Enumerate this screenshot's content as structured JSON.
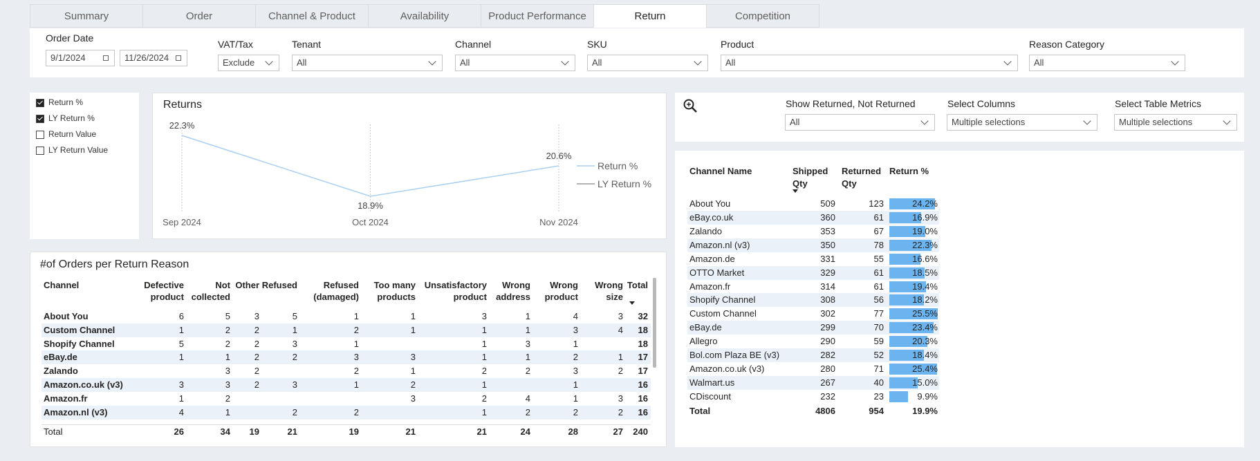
{
  "tabs": [
    "Summary",
    "Order",
    "Channel & Product",
    "Availability",
    "Product Performance",
    "Return",
    "Competition"
  ],
  "active_tab": 5,
  "date_filter": {
    "label": "Order Date",
    "start": "9/1/2024",
    "end": "11/26/2024"
  },
  "dropdowns": [
    {
      "label": "VAT/Tax",
      "value": "Exclude"
    },
    {
      "label": "Tenant",
      "value": "All"
    },
    {
      "label": "Channel",
      "value": "All"
    },
    {
      "label": "SKU",
      "value": "All"
    },
    {
      "label": "Product",
      "value": "All"
    },
    {
      "label": "Reason Category",
      "value": "All"
    }
  ],
  "metric_toggles": [
    {
      "label": "Return %",
      "checked": true
    },
    {
      "label": "LY Return %",
      "checked": true
    },
    {
      "label": "Return Value",
      "checked": false
    },
    {
      "label": "LY Return Value",
      "checked": false
    }
  ],
  "chart_data": {
    "type": "line",
    "title": "Returns",
    "categories": [
      "Sep 2024",
      "Oct 2024",
      "Nov 2024"
    ],
    "series": [
      {
        "name": "Return %",
        "color": "#a9cff2",
        "values": [
          22.3,
          18.9,
          20.6
        ],
        "value_labels": [
          "22.3%",
          "18.9%",
          "20.6%"
        ]
      },
      {
        "name": "LY Return %",
        "color": "#9a9a9a",
        "values": [
          null,
          null,
          null
        ]
      }
    ]
  },
  "reason_table": {
    "title": "#of Orders per Return Reason",
    "headers": [
      [
        "Channel"
      ],
      [
        "Defective",
        "product"
      ],
      [
        "Not",
        "collected"
      ],
      [
        "Other"
      ],
      [
        "Refused"
      ],
      [
        "Refused",
        "(damaged)"
      ],
      [
        "Too many",
        "products"
      ],
      [
        "Unsatisfactory",
        "product"
      ],
      [
        "Wrong",
        "address"
      ],
      [
        "Wrong",
        "product"
      ],
      [
        "Wrong",
        "size"
      ],
      [
        "Total"
      ]
    ],
    "rows": [
      [
        "About You",
        6,
        5,
        3,
        5,
        1,
        1,
        3,
        1,
        4,
        3,
        32
      ],
      [
        "Custom Channel",
        1,
        2,
        2,
        1,
        2,
        1,
        1,
        1,
        3,
        4,
        18
      ],
      [
        "Shopify Channel",
        5,
        2,
        2,
        3,
        1,
        null,
        1,
        3,
        1,
        null,
        18
      ],
      [
        "eBay.de",
        1,
        1,
        2,
        2,
        3,
        3,
        1,
        1,
        2,
        1,
        17
      ],
      [
        "Zalando",
        null,
        3,
        2,
        null,
        2,
        1,
        2,
        2,
        3,
        2,
        17
      ],
      [
        "Amazon.co.uk (v3)",
        3,
        3,
        2,
        3,
        1,
        2,
        1,
        null,
        1,
        null,
        16
      ],
      [
        "Amazon.fr",
        1,
        2,
        null,
        null,
        null,
        3,
        2,
        4,
        1,
        3,
        16
      ],
      [
        "Amazon.nl (v3)",
        4,
        1,
        null,
        2,
        2,
        null,
        1,
        2,
        2,
        2,
        16
      ]
    ],
    "total": [
      "Total",
      26,
      34,
      19,
      21,
      19,
      21,
      21,
      24,
      28,
      27,
      240
    ]
  },
  "table_slicers": [
    {
      "label": "Show Returned, Not Returned",
      "value": "All"
    },
    {
      "label": "Select Columns",
      "value": "Multiple selections"
    },
    {
      "label": "Select Table Metrics",
      "value": "Multiple selections"
    }
  ],
  "channel_table": {
    "headers": [
      [
        "Channel Name"
      ],
      [
        "Shipped",
        "Qty"
      ],
      [
        "Returned",
        "Qty"
      ],
      [
        "Return %"
      ]
    ],
    "bar_color": "#6cb4f0",
    "rows": [
      [
        "About You",
        509,
        123,
        24.2
      ],
      [
        "eBay.co.uk",
        360,
        61,
        16.9
      ],
      [
        "Zalando",
        353,
        67,
        19.0
      ],
      [
        "Amazon.nl (v3)",
        350,
        78,
        22.3
      ],
      [
        "Amazon.de",
        331,
        55,
        16.6
      ],
      [
        "OTTO Market",
        329,
        61,
        18.5
      ],
      [
        "Amazon.fr",
        314,
        61,
        19.4
      ],
      [
        "Shopify Channel",
        308,
        56,
        18.2
      ],
      [
        "Custom Channel",
        302,
        77,
        25.5
      ],
      [
        "eBay.de",
        299,
        70,
        23.4
      ],
      [
        "Allegro",
        290,
        59,
        20.3
      ],
      [
        "Bol.com Plaza BE (v3)",
        282,
        52,
        18.4
      ],
      [
        "Amazon.co.uk (v3)",
        280,
        71,
        25.4
      ],
      [
        "Walmart.us",
        267,
        40,
        15.0
      ],
      [
        "CDiscount",
        232,
        23,
        9.9
      ]
    ],
    "return_pct_labels": [
      "24.2%",
      "16.9%",
      "19.0%",
      "22.3%",
      "16.6%",
      "18.5%",
      "19.4%",
      "18.2%",
      "25.5%",
      "23.4%",
      "20.3%",
      "18.4%",
      "25.4%",
      "15.0%",
      "9.9%"
    ],
    "total": [
      "Total",
      4806,
      954,
      19.9
    ],
    "total_pct_label": "19.9%"
  }
}
